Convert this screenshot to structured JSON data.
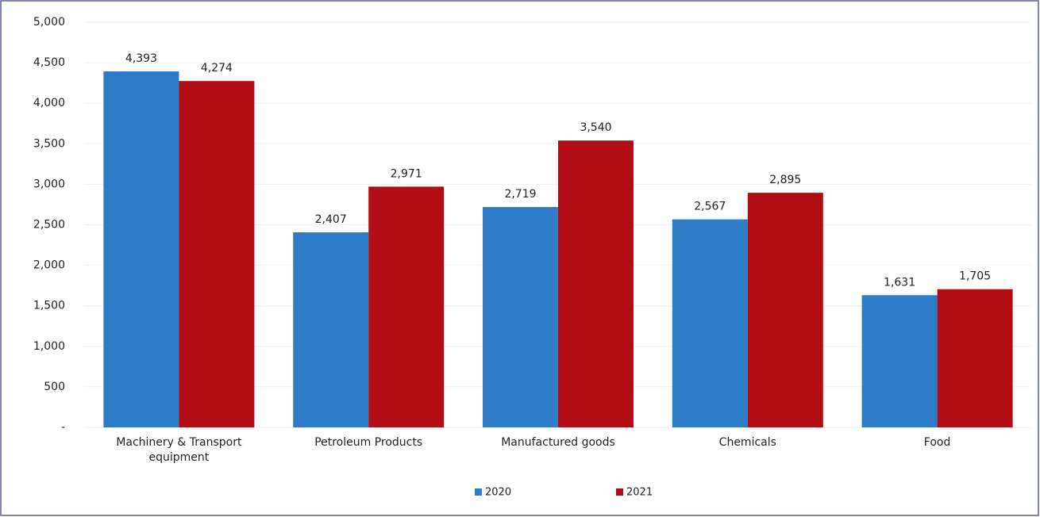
{
  "chart_data": {
    "type": "bar",
    "categories": [
      "Machinery & Transport equipment",
      "Petroleum Products",
      "Manufactured goods",
      "Chemicals",
      "Food"
    ],
    "series": [
      {
        "name": "2020",
        "color": "#2e7bc8",
        "values": [
          4393,
          2407,
          2719,
          2567,
          1631
        ],
        "value_labels": [
          "4,393",
          "2,407",
          "2,719",
          "2,567",
          "1,631"
        ]
      },
      {
        "name": "2021",
        "color": "#b20c14",
        "values": [
          4274,
          2971,
          3540,
          2895,
          1705
        ],
        "value_labels": [
          "4,274",
          "2,971",
          "3,540",
          "2,895",
          "1,705"
        ]
      }
    ],
    "ylim": [
      0,
      5000
    ],
    "yticks": [
      {
        "value": 0,
        "label": "-"
      },
      500,
      {
        "value": 1000,
        "label": "1,000"
      },
      {
        "value": 1500,
        "label": "1,500"
      },
      {
        "value": 2000,
        "label": "2,000"
      },
      {
        "value": 2500,
        "label": "2,500"
      },
      {
        "value": 3000,
        "label": "3,000"
      },
      {
        "value": 3500,
        "label": "3,500"
      },
      {
        "value": 4000,
        "label": "4,000"
      },
      {
        "value": 4500,
        "label": "4,500"
      },
      {
        "value": 5000,
        "label": "5,000"
      }
    ],
    "grid": true,
    "legend": "bottom"
  }
}
